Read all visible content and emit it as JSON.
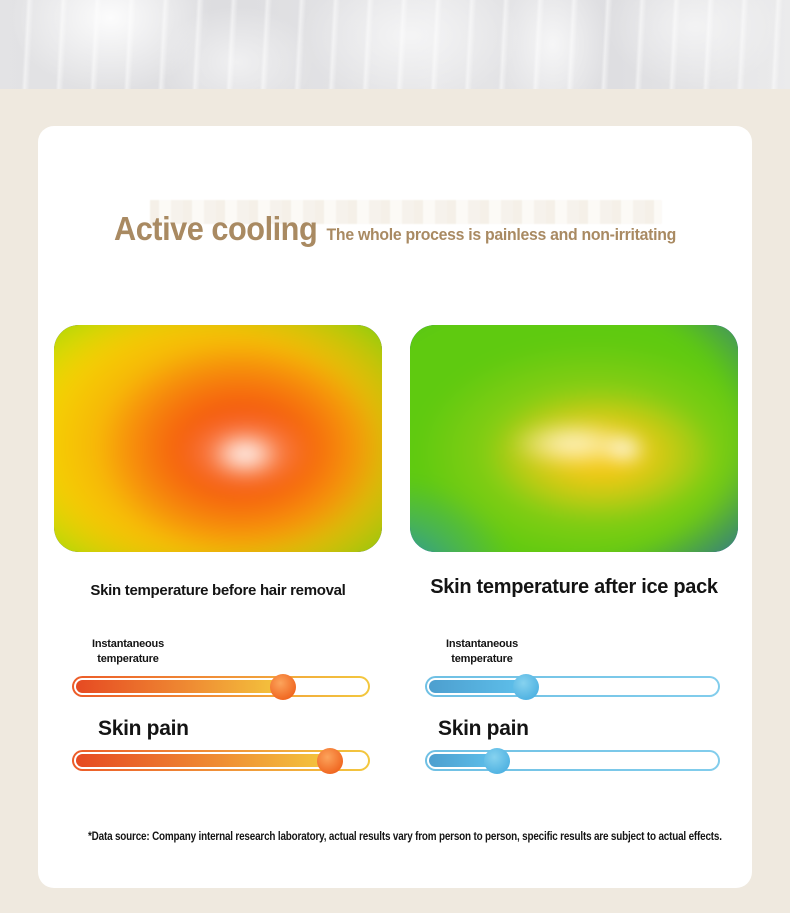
{
  "header": {
    "title": "Active cooling",
    "subtitle": "The whole process is painless and non-irritating"
  },
  "colors": {
    "accent_tan": "#a98a62",
    "hot_accent": "#f2691f",
    "cool_accent": "#58b9e6",
    "page_bg": "#efe9df",
    "card_bg": "#ffffff"
  },
  "panels": {
    "before": {
      "caption": "Skin temperature before hair removal",
      "heatmap": "thermal-heatmap-hot",
      "temp_slider": {
        "label": "Instantaneous temperature",
        "value_pct": "71%"
      },
      "pain_slider": {
        "label": "Skin pain",
        "value_pct": "87%"
      }
    },
    "after": {
      "caption": "Skin temperature after ice pack",
      "heatmap": "thermal-heatmap-cool",
      "temp_slider": {
        "label": "Instantaneous temperature",
        "value_pct": "34%"
      },
      "pain_slider": {
        "label": "Skin pain",
        "value_pct": "24%"
      }
    }
  },
  "footnote": "*Data source: Company internal research laboratory, actual results vary from person to person, specific results are subject to actual effects."
}
